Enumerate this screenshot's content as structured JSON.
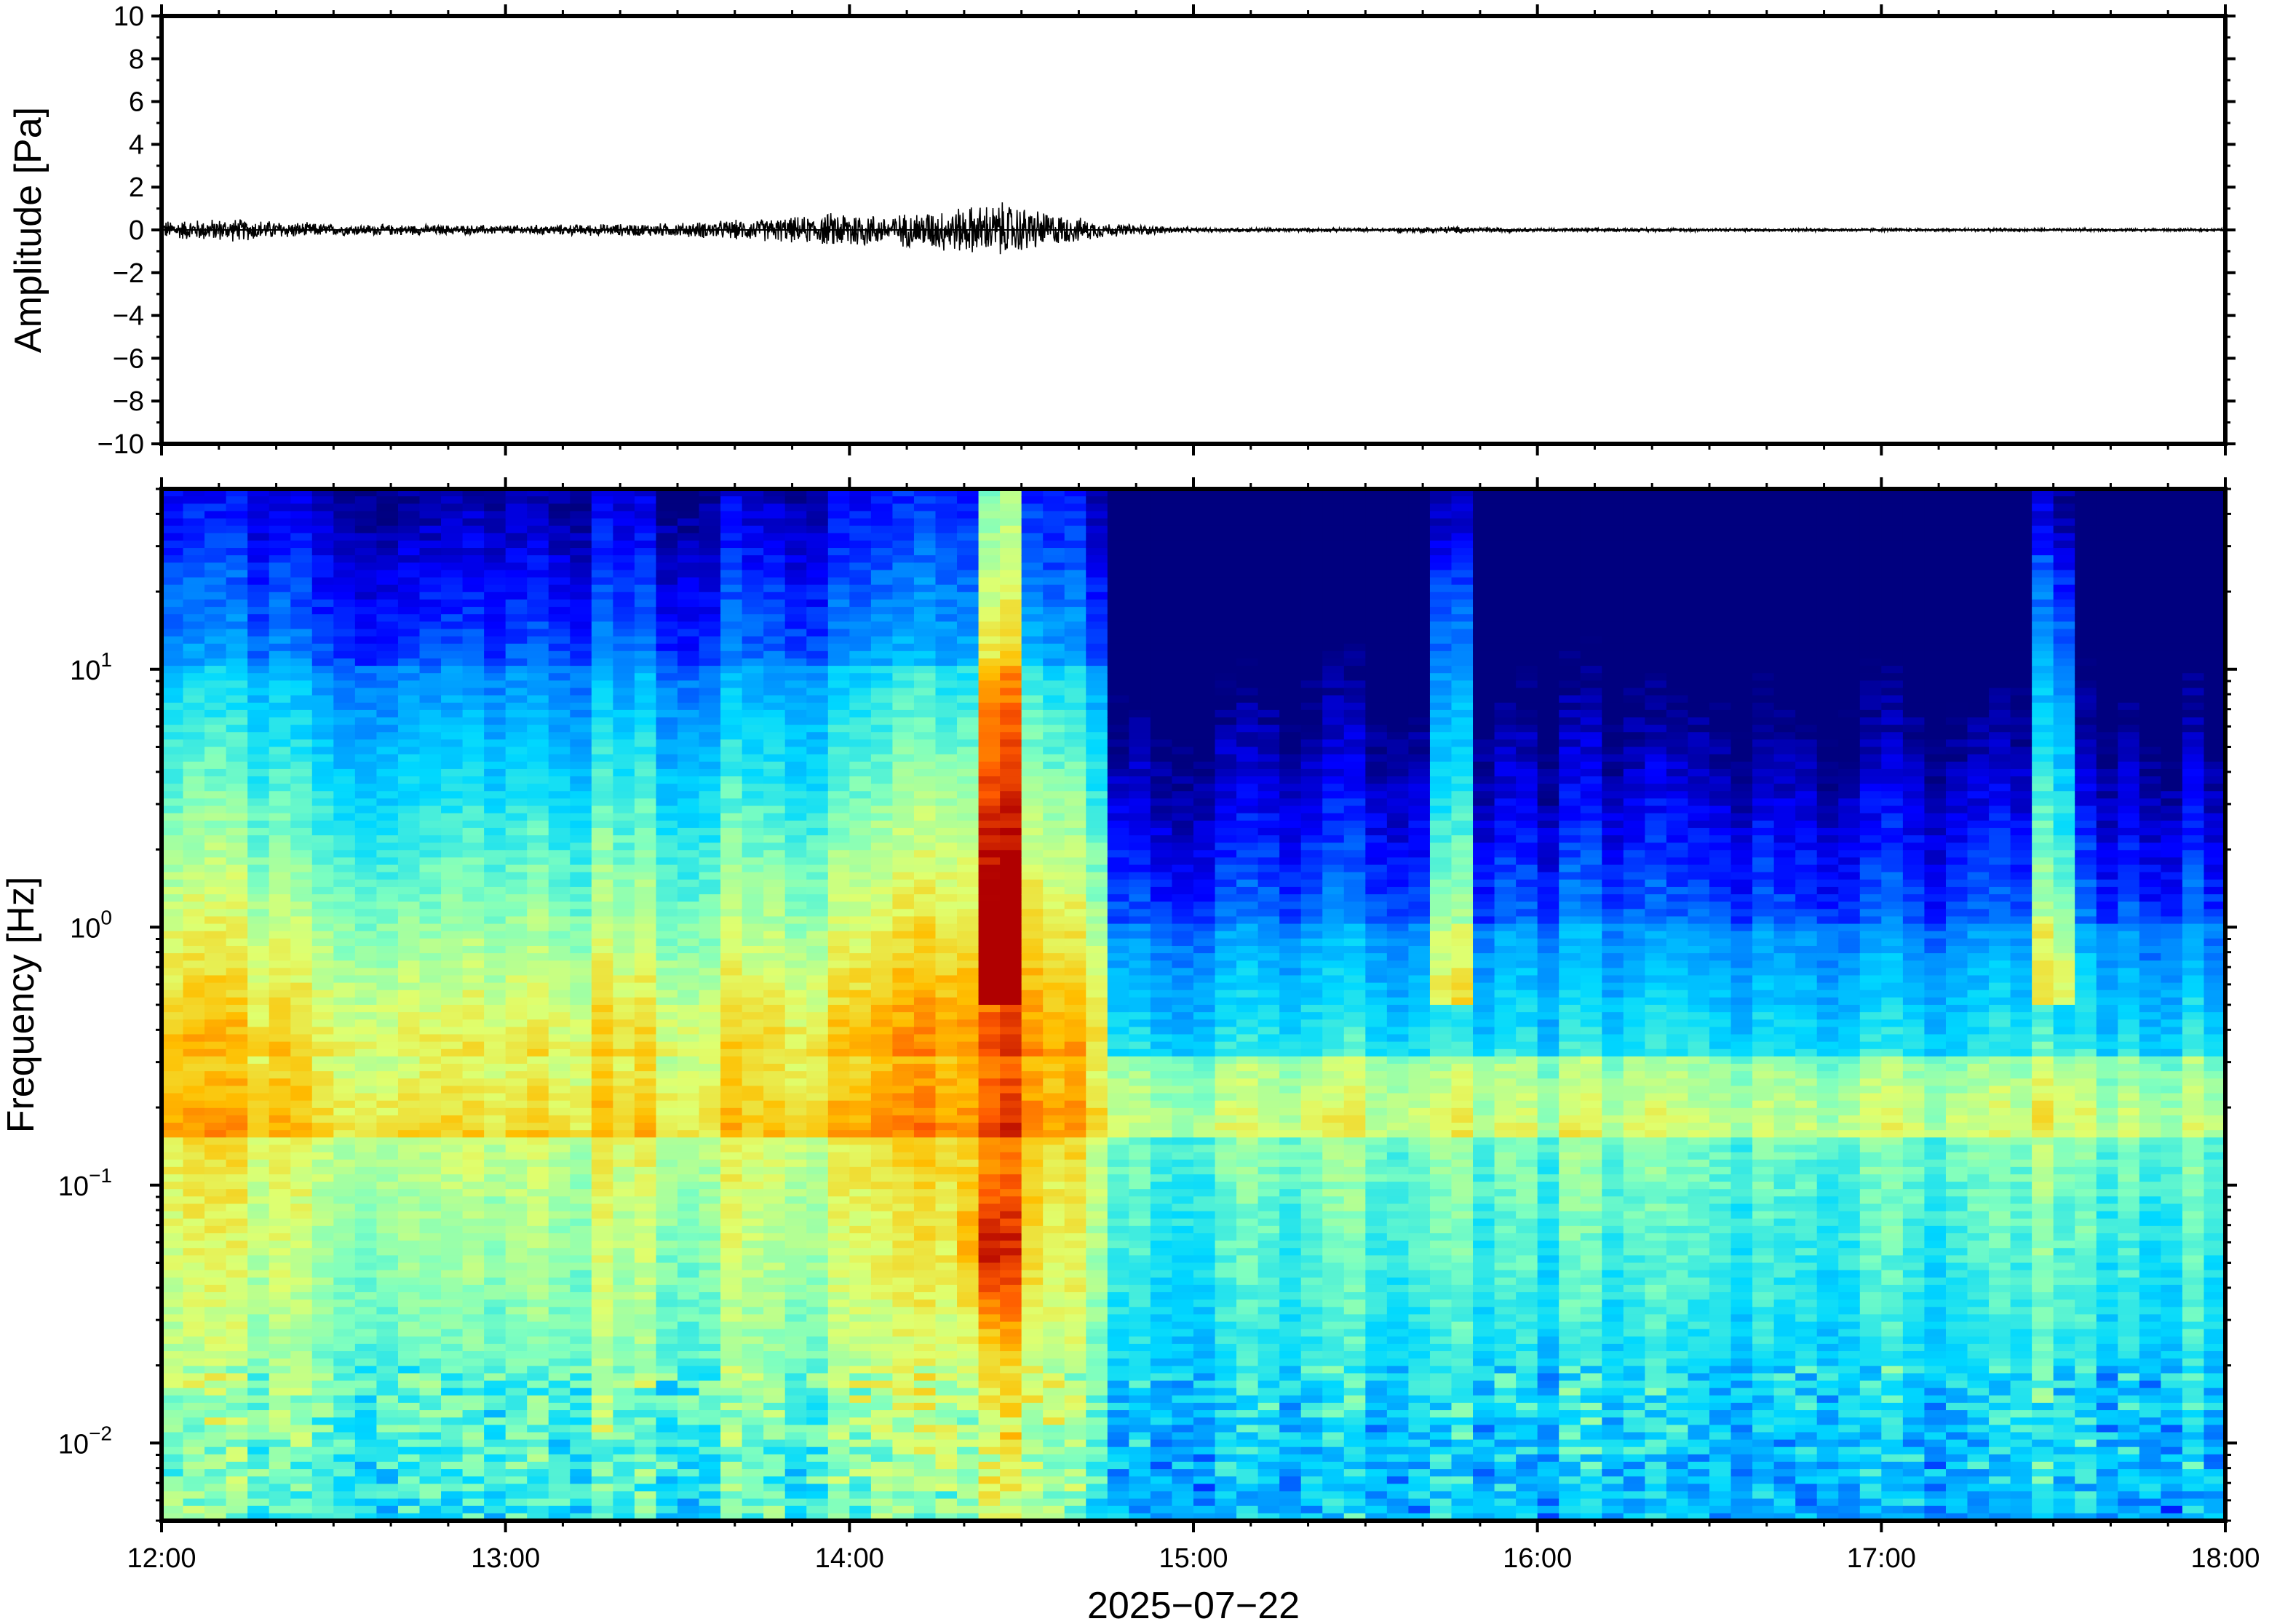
{
  "chart_data": [
    {
      "type": "line",
      "panel": "waveform",
      "ylabel": "Amplitude [Pa]",
      "ylim": [
        -10,
        10
      ],
      "yticks": [
        10,
        8,
        6,
        4,
        2,
        0,
        -2,
        -4,
        -6,
        -8,
        -10
      ],
      "ytick_labels": [
        "10",
        "8",
        "6",
        "4",
        "2",
        "0",
        "−2",
        "−4",
        "−6",
        "−8",
        "−10"
      ],
      "xlim": [
        "12:00",
        "18:00"
      ],
      "grid": false,
      "series": [
        {
          "x_hours": [
            12.0,
            12.2,
            12.5,
            13.0,
            13.5,
            13.9,
            14.0,
            14.1,
            14.25,
            14.4,
            14.45,
            14.6,
            14.75,
            15.0,
            15.5,
            15.75,
            16.0,
            17.0,
            18.0
          ],
          "envelope_pa": [
            0.4,
            0.5,
            0.25,
            0.2,
            0.3,
            0.6,
            0.9,
            0.6,
            0.9,
            1.1,
            1.2,
            0.7,
            0.3,
            0.1,
            0.08,
            0.15,
            0.08,
            0.07,
            0.06
          ]
        }
      ]
    },
    {
      "type": "heatmap",
      "panel": "spectrogram",
      "ylabel": "Frequency [Hz]",
      "yscale": "log",
      "ylim": [
        0.005,
        50
      ],
      "ytick_labels": [
        {
          "base": "10",
          "exp": "1",
          "value": 10
        },
        {
          "base": "10",
          "exp": "0",
          "value": 1
        },
        {
          "base": "10",
          "exp": "−1",
          "value": 0.1
        },
        {
          "base": "10",
          "exp": "−2",
          "value": 0.01
        }
      ],
      "xlabel": "2025−07−22",
      "xlim": [
        "12:00",
        "18:00"
      ],
      "xtick_labels": [
        "12:00",
        "13:00",
        "14:00",
        "15:00",
        "16:00",
        "17:00",
        "18:00"
      ],
      "colormap": [
        "#00007f",
        "#0000ff",
        "#0080ff",
        "#00d8ff",
        "#7fffbf",
        "#dfff6f",
        "#ffbf00",
        "#ff5a00",
        "#b00000"
      ],
      "bright_columns_hours": [
        14.45,
        15.75,
        17.5
      ],
      "peak": {
        "time": "14:25",
        "freq_hz": 0.055
      },
      "grid": false
    }
  ]
}
